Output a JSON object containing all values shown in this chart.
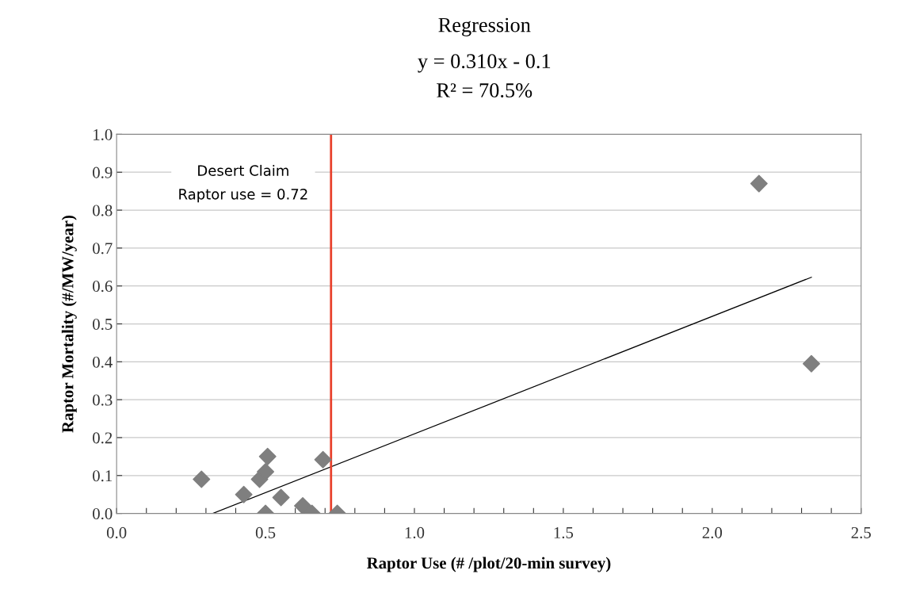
{
  "chart_data": {
    "type": "scatter",
    "title": "Regression",
    "subtitle": "y = 0.310x - 0.1\nR² = 70.5%",
    "xlabel": "Raptor Use (# /plot/20-min survey)",
    "ylabel": "Raptor Mortality (#/MW/year)",
    "x": [
      0.285,
      0.427,
      0.48,
      0.5,
      0.507,
      0.552,
      0.5,
      0.693,
      0.625,
      0.656,
      0.741,
      2.157,
      2.333
    ],
    "series": [
      {
        "color": "#7f7f7f",
        "values": [
          0.09,
          0.05,
          0.09,
          0.11,
          0.15,
          0.042,
          0.0,
          0.142,
          0.02,
          0.0,
          0.0,
          0.87,
          0.395
        ]
      },
      {
        "type": "line",
        "color": "#000000",
        "x": [
          0.323,
          2.333
        ],
        "values": [
          0.0,
          0.623
        ],
        "marker": "none"
      }
    ],
    "marker": "diamond",
    "xlim": [
      0,
      2.5
    ],
    "ylim": [
      0,
      1.0
    ],
    "xticks": [
      {
        "value": 0,
        "label": "0.0"
      },
      {
        "value": 0.1,
        "label": null
      },
      {
        "value": 0.2,
        "label": null
      },
      {
        "value": 0.3,
        "label": null
      },
      {
        "value": 0.4,
        "label": null
      },
      {
        "value": 0.5,
        "label": "0.5"
      },
      {
        "value": 0.6,
        "label": null
      },
      {
        "value": 0.7,
        "label": null
      },
      {
        "value": 0.8,
        "label": null
      },
      {
        "value": 0.9,
        "label": null
      },
      {
        "value": 1.0,
        "label": "1.0"
      },
      {
        "value": 1.1,
        "label": null
      },
      {
        "value": 1.2,
        "label": null
      },
      {
        "value": 1.3,
        "label": null
      },
      {
        "value": 1.4,
        "label": null
      },
      {
        "value": 1.5,
        "label": "1.5"
      },
      {
        "value": 1.6,
        "label": null
      },
      {
        "value": 1.7,
        "label": null
      },
      {
        "value": 1.8,
        "label": null
      },
      {
        "value": 1.9,
        "label": null
      },
      {
        "value": 2.0,
        "label": "2.0"
      },
      {
        "value": 2.1,
        "label": null
      },
      {
        "value": 2.2,
        "label": null
      },
      {
        "value": 2.3,
        "label": null
      },
      {
        "value": 2.4,
        "label": null
      },
      {
        "value": 2.5,
        "label": "2.5"
      }
    ],
    "yticks": [
      {
        "value": 0,
        "label": "0.0"
      },
      {
        "value": 0.1,
        "label": "0.1"
      },
      {
        "value": 0.2,
        "label": "0.2"
      },
      {
        "value": 0.3,
        "label": "0.3"
      },
      {
        "value": 0.4,
        "label": "0.4"
      },
      {
        "value": 0.5,
        "label": "0.5"
      },
      {
        "value": 0.6,
        "label": "0.6"
      },
      {
        "value": 0.7,
        "label": "0.7"
      },
      {
        "value": 0.8,
        "label": "0.8"
      },
      {
        "value": 0.9,
        "label": "0.9"
      },
      {
        "value": 1.0,
        "label": "1.0"
      }
    ],
    "ref_lines": [
      {
        "axis": "x",
        "value": 0.72,
        "label": "Desert Claim\nRaptor use = 0.72",
        "color": "#e8412c"
      }
    ],
    "grid": "y",
    "legend": false
  }
}
